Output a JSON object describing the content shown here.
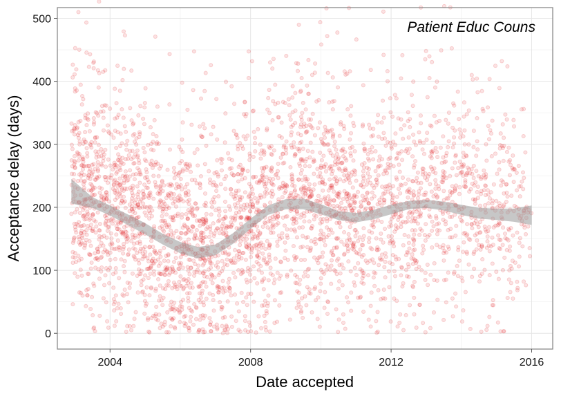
{
  "chart_data": {
    "type": "scatter",
    "title": "",
    "annotation": "Patient Educ Couns",
    "xlabel": "Date accepted",
    "ylabel": "Acceptance delay (days)",
    "xlim": [
      2002.5,
      2016.6
    ],
    "ylim": [
      -25,
      517
    ],
    "x_ticks": [
      2004,
      2008,
      2012,
      2016
    ],
    "x_tick_labels": [
      "2004",
      "2008",
      "2012",
      "2016"
    ],
    "y_ticks": [
      0,
      100,
      200,
      300,
      400,
      500
    ],
    "y_tick_labels": [
      "0",
      "100",
      "200",
      "300",
      "400",
      "500"
    ],
    "grid": true,
    "point_color": "#e31a1c",
    "point_opacity": 0.18,
    "smooth_band_color": "#999999",
    "x_range_data": [
      2002.9,
      2016.0
    ],
    "n_points_approx": 3500,
    "smooth_trend": {
      "x": [
        2002.9,
        2003.5,
        2004.0,
        2004.5,
        2005.0,
        2005.5,
        2006.0,
        2006.5,
        2007.0,
        2007.5,
        2008.0,
        2008.5,
        2009.0,
        2009.5,
        2010.0,
        2010.5,
        2011.0,
        2011.5,
        2012.0,
        2012.5,
        2013.0,
        2013.5,
        2014.0,
        2014.5,
        2015.0,
        2015.5,
        2016.0
      ],
      "y": [
        225,
        207,
        195,
        181,
        166,
        150,
        136,
        128,
        132,
        150,
        174,
        195,
        205,
        206,
        197,
        187,
        184,
        188,
        196,
        203,
        205,
        202,
        196,
        191,
        189,
        187,
        187
      ],
      "lower": [
        206,
        199,
        187,
        172,
        157,
        141,
        127,
        119,
        124,
        142,
        166,
        188,
        197,
        197,
        189,
        180,
        176,
        181,
        189,
        197,
        199,
        195,
        188,
        182,
        180,
        177,
        172
      ],
      "upper": [
        245,
        216,
        203,
        189,
        175,
        158,
        145,
        137,
        141,
        159,
        182,
        203,
        213,
        214,
        205,
        194,
        191,
        196,
        204,
        210,
        212,
        209,
        204,
        199,
        198,
        198,
        203
      ]
    }
  }
}
